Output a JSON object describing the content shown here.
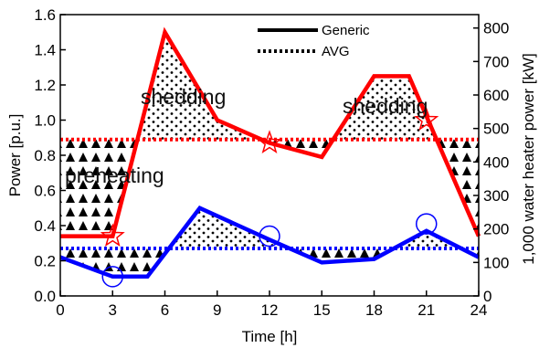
{
  "chart_data": {
    "type": "line",
    "title": "",
    "xlabel": "Time [h]",
    "ylabel": "Power [p.u.]",
    "y2label": "1,000 water heater power [kW]",
    "xlim": [
      0,
      24
    ],
    "ylim": [
      0,
      1.6
    ],
    "y2lim": [
      0,
      840
    ],
    "xticks": [
      "0",
      "3",
      "6",
      "9",
      "12",
      "15",
      "18",
      "21",
      "24"
    ],
    "yticks": [
      "0.0",
      "0.2",
      "0.4",
      "0.6",
      "0.8",
      "1.0",
      "1.2",
      "1.4",
      "1.6"
    ],
    "y2ticks": [
      "0",
      "100",
      "200",
      "300",
      "400",
      "500",
      "600",
      "700",
      "800"
    ],
    "grid": false,
    "legend_position": "top-center",
    "legend": [
      {
        "label": "Generic",
        "style": "solid"
      },
      {
        "label": "AVG",
        "style": "dotted"
      }
    ],
    "series": [
      {
        "color": "#ff0000",
        "style": "solid",
        "x": [
          0,
          3,
          6,
          9,
          12,
          15,
          18,
          20,
          24
        ],
        "y": [
          0.34,
          0.34,
          1.5,
          1.0,
          0.87,
          0.79,
          1.25,
          1.25,
          0.34
        ]
      },
      {
        "color": "#ff0000",
        "style": "dotted",
        "x": [
          0,
          24
        ],
        "y": [
          0.89,
          0.89
        ]
      },
      {
        "color": "#0000ff",
        "style": "solid",
        "x": [
          0,
          3,
          5,
          8,
          12,
          15,
          18,
          21,
          24
        ],
        "y": [
          0.22,
          0.11,
          0.11,
          0.5,
          0.32,
          0.19,
          0.21,
          0.37,
          0.22
        ]
      },
      {
        "color": "#0000ff",
        "style": "dotted",
        "x": [
          0,
          24
        ],
        "y": [
          0.27,
          0.27
        ]
      }
    ],
    "markers": [
      {
        "shape": "star",
        "color": "#ff0000",
        "x": 3,
        "y": 0.34
      },
      {
        "shape": "star",
        "color": "#ff0000",
        "x": 12,
        "y": 0.87
      },
      {
        "shape": "star",
        "color": "#ff0000",
        "x": 21,
        "y": 1.0
      },
      {
        "shape": "circle",
        "color": "#0000ff",
        "x": 3,
        "y": 0.11
      },
      {
        "shape": "circle",
        "color": "#0000ff",
        "x": 12,
        "y": 0.34
      },
      {
        "shape": "circle",
        "color": "#0000ff",
        "x": 21,
        "y": 0.41
      }
    ],
    "annotations": [
      {
        "text": "preheating",
        "x": 0.2,
        "y": 0.6
      },
      {
        "text": "shedding",
        "x": 4.6,
        "y": 1.09
      },
      {
        "text": "shedding",
        "x": 17.3,
        "y": 1.04
      }
    ]
  }
}
